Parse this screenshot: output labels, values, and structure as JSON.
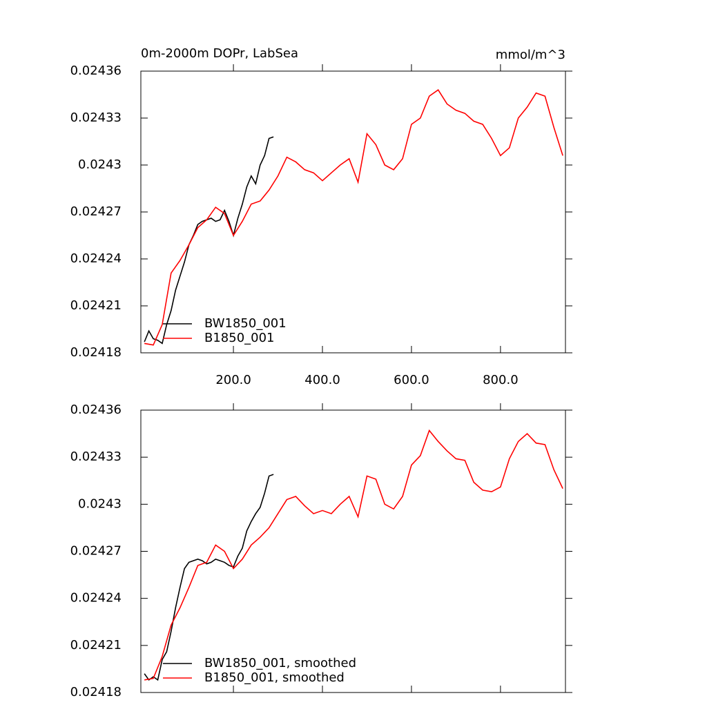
{
  "chart_data": [
    {
      "type": "line",
      "title": "0m-2000m DOPr, LabSea",
      "units": "mmol/m^3",
      "xlim": [
        -8,
        946
      ],
      "ylim": [
        0.02418,
        0.02436
      ],
      "xticks": [
        {
          "value": 200,
          "label": "200.0"
        },
        {
          "value": 400,
          "label": "400.0"
        },
        {
          "value": 600,
          "label": "600.0"
        },
        {
          "value": 800,
          "label": "800.0"
        }
      ],
      "yticks": [
        0.02418,
        0.02421,
        0.02424,
        0.02427,
        0.0243,
        0.02433,
        0.02436
      ],
      "legend": "lower left",
      "series": [
        {
          "name": "BW1850_001",
          "color": "#000000",
          "x": [
            0,
            10,
            20,
            30,
            40,
            50,
            60,
            70,
            80,
            90,
            100,
            110,
            120,
            130,
            140,
            150,
            160,
            170,
            180,
            190,
            200,
            210,
            220,
            230,
            240,
            250,
            260,
            270,
            280,
            290
          ],
          "values": [
            0.024187,
            0.024194,
            0.024189,
            0.024188,
            0.024186,
            0.024198,
            0.024207,
            0.02422,
            0.024229,
            0.024238,
            0.024249,
            0.024255,
            0.024262,
            0.024264,
            0.024265,
            0.024266,
            0.024264,
            0.024265,
            0.024271,
            0.024264,
            0.024255,
            0.024266,
            0.024275,
            0.024286,
            0.024293,
            0.024288,
            0.0243,
            0.024306,
            0.024317,
            0.024318
          ]
        },
        {
          "name": "B1850_001",
          "color": "#ff0000",
          "x": [
            0,
            20,
            40,
            60,
            80,
            100,
            120,
            140,
            160,
            180,
            200,
            220,
            240,
            260,
            280,
            300,
            320,
            340,
            360,
            380,
            400,
            420,
            440,
            460,
            480,
            500,
            520,
            540,
            560,
            580,
            600,
            620,
            640,
            660,
            680,
            700,
            720,
            740,
            760,
            780,
            800,
            820,
            840,
            860,
            880,
            900,
            920,
            940
          ],
          "values": [
            0.024186,
            0.024185,
            0.024198,
            0.024231,
            0.024239,
            0.024249,
            0.02426,
            0.024265,
            0.024273,
            0.024269,
            0.024255,
            0.024264,
            0.024275,
            0.024277,
            0.024284,
            0.024293,
            0.024305,
            0.024302,
            0.024297,
            0.024295,
            0.02429,
            0.024295,
            0.0243,
            0.024304,
            0.024289,
            0.02432,
            0.024313,
            0.0243,
            0.024297,
            0.024304,
            0.024326,
            0.02433,
            0.024344,
            0.024348,
            0.024339,
            0.024335,
            0.024333,
            0.024328,
            0.024326,
            0.024317,
            0.024306,
            0.024311,
            0.02433,
            0.024337,
            0.024346,
            0.024344,
            0.024324,
            0.024306
          ]
        }
      ]
    },
    {
      "type": "line",
      "xlim": [
        -8,
        946
      ],
      "ylim": [
        0.02418,
        0.02436
      ],
      "xticks": [
        200,
        400,
        600,
        800
      ],
      "xtick_labels": false,
      "yticks": [
        0.02418,
        0.02421,
        0.02424,
        0.02427,
        0.0243,
        0.02433,
        0.02436
      ],
      "legend": "lower left",
      "series": [
        {
          "name": "BW1850_001, smoothed",
          "color": "#000000",
          "x": [
            0,
            10,
            20,
            30,
            40,
            50,
            60,
            70,
            80,
            90,
            100,
            110,
            120,
            130,
            140,
            150,
            160,
            170,
            180,
            190,
            200,
            210,
            220,
            230,
            240,
            250,
            260,
            270,
            280,
            290
          ],
          "values": [
            0.024192,
            0.024188,
            0.02419,
            0.024188,
            0.024201,
            0.024206,
            0.024219,
            0.024234,
            0.024247,
            0.024259,
            0.024263,
            0.024264,
            0.024265,
            0.024264,
            0.024262,
            0.024263,
            0.024265,
            0.024264,
            0.024263,
            0.024261,
            0.02426,
            0.024267,
            0.024272,
            0.024283,
            0.024289,
            0.024294,
            0.024298,
            0.024307,
            0.024318,
            0.024319
          ]
        },
        {
          "name": "B1850_001, smoothed",
          "color": "#ff0000",
          "x": [
            0,
            20,
            40,
            60,
            80,
            100,
            120,
            140,
            160,
            180,
            200,
            220,
            240,
            260,
            280,
            300,
            320,
            340,
            360,
            380,
            400,
            420,
            440,
            460,
            480,
            500,
            520,
            540,
            560,
            580,
            600,
            620,
            640,
            660,
            680,
            700,
            720,
            740,
            760,
            780,
            800,
            820,
            840,
            860,
            880,
            900,
            920,
            940
          ],
          "values": [
            0.024188,
            0.024189,
            0.024203,
            0.024223,
            0.024234,
            0.024247,
            0.024261,
            0.024263,
            0.024274,
            0.02427,
            0.024259,
            0.024265,
            0.024274,
            0.024279,
            0.024285,
            0.024294,
            0.024303,
            0.024305,
            0.024299,
            0.024294,
            0.024296,
            0.024294,
            0.0243,
            0.024305,
            0.024292,
            0.024318,
            0.024316,
            0.0243,
            0.024297,
            0.024305,
            0.024325,
            0.024331,
            0.024347,
            0.02434,
            0.024334,
            0.024329,
            0.024328,
            0.024314,
            0.024309,
            0.024308,
            0.024311,
            0.024329,
            0.02434,
            0.024345,
            0.024339,
            0.024338,
            0.024322,
            0.02431
          ]
        }
      ]
    }
  ]
}
